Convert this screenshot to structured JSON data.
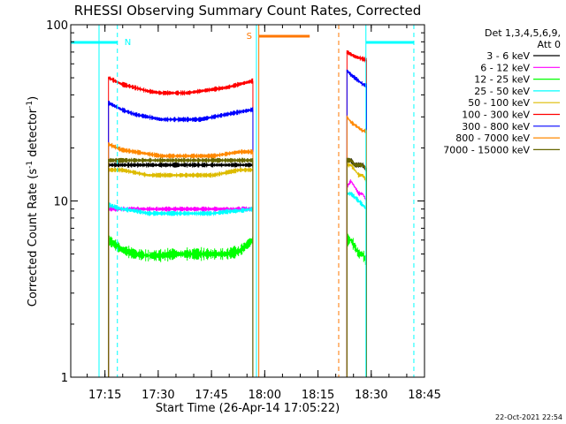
{
  "chart_data": {
    "type": "line",
    "title": "RHESSI Observing Summary Count Rates, Corrected",
    "xlabel": "Start Time (26-Apr-14 17:05:22)",
    "ylabel": "Corrected Count Rate (s",
    "ylabel_sup1": "-1",
    "ylabel_mid": " detector",
    "ylabel_sup2": "-1",
    "ylabel_end": ")",
    "x_scale": "time",
    "y_scale": "log",
    "xlim": [
      "17:05:22",
      "18:45:00"
    ],
    "ylim": [
      1,
      100
    ],
    "x_ticks": [
      "17:15",
      "17:30",
      "17:45",
      "18:00",
      "18:15",
      "18:30",
      "18:45"
    ],
    "y_ticks": [
      "1",
      "10",
      "100"
    ],
    "grid": false,
    "legend_placement": "top-right",
    "legend_header": [
      "Det 1,3,4,5,6,9,",
      "Att 0"
    ],
    "series": [
      {
        "name": "3 - 6 keV",
        "color": "#000000",
        "segments": [
          {
            "start": "17:16:00",
            "end": "17:56:40",
            "values": [
              16,
              16,
              16,
              16,
              16,
              16,
              16,
              16,
              16,
              16,
              16,
              16
            ]
          },
          {
            "start": "18:23:10",
            "end": "18:28:40",
            "values": [
              17,
              17,
              16,
              16,
              16,
              15
            ]
          }
        ]
      },
      {
        "name": "6 - 12 keV",
        "color": "#ff00ff",
        "segments": [
          {
            "start": "17:16:00",
            "end": "17:56:40",
            "values": [
              9,
              9,
              9,
              9,
              9,
              9,
              9,
              9,
              9,
              9,
              9,
              9
            ]
          },
          {
            "start": "18:23:10",
            "end": "18:28:40",
            "values": [
              12,
              13,
              12,
              11,
              11,
              10
            ]
          }
        ]
      },
      {
        "name": "12 - 25 keV",
        "color": "#00ff00",
        "segments": [
          {
            "start": "17:16:00",
            "end": "17:56:40",
            "values": [
              6,
              5.3,
              5,
              4.9,
              4.9,
              5,
              5,
              5,
              5,
              5,
              5.2,
              6
            ]
          },
          {
            "start": "18:23:10",
            "end": "18:28:40",
            "values": [
              6,
              6,
              5.5,
              5,
              5,
              4.5
            ]
          }
        ]
      },
      {
        "name": "25 - 50 keV",
        "color": "#00ffff",
        "segments": [
          {
            "start": "17:16:00",
            "end": "17:56:40",
            "values": [
              9.5,
              9,
              8.8,
              8.5,
              8.5,
              8.5,
              8.5,
              8.5,
              8.5,
              8.7,
              8.8,
              9
            ]
          },
          {
            "start": "18:23:10",
            "end": "18:28:40",
            "values": [
              11,
              11,
              10.5,
              10,
              9.5,
              9
            ]
          }
        ]
      },
      {
        "name": "50 - 100 keV",
        "color": "#ddbb00",
        "segments": [
          {
            "start": "17:16:00",
            "end": "17:56:40",
            "values": [
              15,
              15,
              14.5,
              14,
              14,
              14,
              14,
              14,
              14,
              14.5,
              15,
              15
            ]
          },
          {
            "start": "18:23:10",
            "end": "18:28:40",
            "values": [
              16,
              16,
              15,
              14,
              14,
              13
            ]
          }
        ]
      },
      {
        "name": "100 - 300 keV",
        "color": "#ff0000",
        "segments": [
          {
            "start": "17:16:00",
            "end": "17:56:40",
            "values": [
              50,
              46,
              44,
              42,
              41,
              41,
              41,
              42,
              43,
              44,
              46,
              48
            ]
          },
          {
            "start": "18:23:10",
            "end": "18:28:40",
            "values": [
              70,
              68,
              66,
              65,
              64,
              63
            ]
          }
        ]
      },
      {
        "name": "300 - 800 keV",
        "color": "#0000ff",
        "segments": [
          {
            "start": "17:16:00",
            "end": "17:56:40",
            "values": [
              36,
              33,
              31,
              30,
              29,
              29,
              29,
              29,
              30,
              31,
              32,
              33
            ]
          },
          {
            "start": "18:23:10",
            "end": "18:28:40",
            "values": [
              55,
              52,
              50,
              48,
              46,
              45
            ]
          }
        ]
      },
      {
        "name": "800 - 7000 keV",
        "color": "#ff8800",
        "segments": [
          {
            "start": "17:16:00",
            "end": "17:56:40",
            "values": [
              21,
              19.5,
              19,
              18.5,
              18,
              18,
              18,
              18,
              18,
              18.5,
              19,
              19
            ]
          },
          {
            "start": "18:23:10",
            "end": "18:28:40",
            "values": [
              30,
              28,
              27,
              26,
              25,
              25
            ]
          }
        ]
      },
      {
        "name": "7000 - 15000 keV",
        "color": "#666600",
        "segments": [
          {
            "start": "17:16:00",
            "end": "17:56:40",
            "values": [
              17,
              17,
              17,
              17,
              17,
              17,
              17,
              17,
              17,
              17,
              17,
              17
            ]
          },
          {
            "start": "18:23:10",
            "end": "18:28:40",
            "values": [
              17,
              17,
              16,
              16,
              16,
              15
            ]
          }
        ]
      }
    ],
    "annotations": {
      "night_bars": [
        {
          "label": "N",
          "start": "17:05:22",
          "end": "17:18:30",
          "color": "#00ffff"
        },
        {
          "label": "",
          "start": "18:28:30",
          "end": "18:42:00",
          "color": "#00ffff"
        }
      ],
      "saa_bars": [
        {
          "label": "S",
          "start": "17:58:20",
          "end": "18:12:40",
          "color": "#ff7700"
        }
      ],
      "night_boundaries": [
        {
          "time": "17:13:20",
          "style": "solid",
          "color": "#00ffff"
        },
        {
          "time": "17:18:30",
          "style": "dashed",
          "color": "#00ffff"
        },
        {
          "time": "17:57:40",
          "style": "solid",
          "color": "#00ffff"
        },
        {
          "time": "18:28:30",
          "style": "solid",
          "color": "#00ffff"
        },
        {
          "time": "18:42:00",
          "style": "dashed",
          "color": "#00ffff"
        }
      ],
      "saa_boundaries": [
        {
          "time": "17:58:20",
          "style": "solid",
          "color": "#ff7700"
        },
        {
          "time": "18:20:50",
          "style": "dashed",
          "color": "#ff7700"
        }
      ]
    },
    "footer_date": "22-Oct-2021 22:54"
  }
}
